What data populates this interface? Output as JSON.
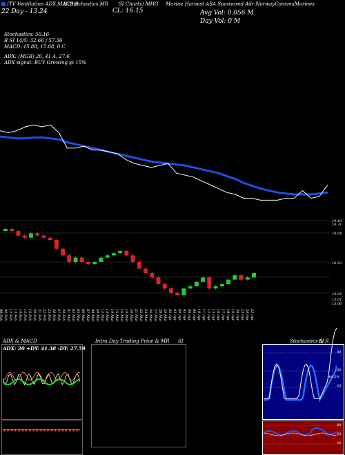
{
  "header": {
    "col1": "(TV Ventilation ADX,MACD,B",
    "col2": "SI,Stochastics,MR",
    "col3": "SI Charts) MHG",
    "col4": "Marine Harvest ASA Sponsored Adr NorwayConsmaMarines",
    "day_line": "22 Day - 13.24",
    "cl_label": "CL: 16.15",
    "avg_vol": "Avg Vol: 0.056  M",
    "day_vol": "Day Vol: 0  M"
  },
  "indicators": {
    "stochastics": "Stochastics: 56.16",
    "rsi": "R        SI 14/5: 32.66  / 57.36",
    "macd": "MACD: 15.88,  15.88,  0  C",
    "adx": "ADX:                      (MGR) 20,  41.4,   27.6",
    "adx_signal": "ADX  signal:                                   BUY Growing @ 15%"
  },
  "price_levels": {
    "l1": "19.42",
    "l2": "19.31",
    "l3": "19.04",
    "l4": "16.53",
    "l5": "15.02",
    "l6": "15.01",
    "l7": "13.06"
  },
  "x_labels": [
    "08 Feb",
    "09 Feb",
    "12 Feb",
    "13 Feb",
    "14 Feb",
    "15 Feb",
    "16 Feb",
    "20 Feb",
    "21 Feb",
    "22 Feb",
    "23 Feb",
    "26 Feb",
    "27 Feb",
    "28 Feb",
    "01 Mar",
    "02 Mar",
    "05 Mar",
    "06 Mar",
    "07 Mar",
    "08 Mar",
    "09 Mar",
    "12 Mar",
    "13 Mar",
    "14 Mar",
    "15 Mar",
    "16 Mar",
    "19 Mar",
    "20 Mar",
    "21 Mar",
    "22 Mar",
    "23 Mar",
    "26 Mar",
    "27 Mar",
    "28 Mar",
    "29 Mar",
    "02 Apr",
    "03 Apr",
    "04 Apr",
    "05 Apr",
    "06 Apr",
    "09 Apr",
    "10 Apr",
    "11 Apr",
    "12 Apr",
    "13 Apr",
    "16 Apr",
    "17 Apr",
    "18 Apr",
    "19 Apr",
    "20 Apr",
    "23 Apr",
    "24 Apr",
    "25 Apr"
  ],
  "panels": {
    "adx_title": "ADX  & MACD",
    "adx_values": "ADX: 20  +DY: 41.38  -DY: 27.59",
    "intraday_title": "Intra  Day Trading Price  & MR",
    "intraday_si": "SI",
    "stoch_title": "Stochastics & R",
    "stoch_si": "SI",
    "stoch_ticks": [
      "80",
      "50",
      "20"
    ],
    "stoch_value": "44.5%",
    "rsi_ticks": [
      "80",
      "50",
      "20"
    ]
  },
  "colors": {
    "ma_line": "#1f4fe6",
    "price_line": "#ffffff",
    "up_candle": "#22cc22",
    "down_candle": "#dd2222",
    "stoch_bg": "#000080",
    "rsi_bg": "#8b0000"
  },
  "chart_data": [
    {
      "type": "line",
      "name_ref": "price",
      "series": [
        {
          "values": [
            16.3,
            16.2,
            16.3,
            16.5,
            16.6,
            16.5,
            16.6,
            16.2,
            15.4,
            15.4,
            15.5,
            15.3,
            15.3,
            15.2,
            15.1,
            14.8,
            14.6,
            14.5,
            14.4,
            14.5,
            14.6,
            14.1,
            14.0,
            13.9,
            13.7,
            13.5,
            13.3,
            13.1,
            13.0,
            12.8,
            12.8,
            12.7,
            12.7,
            12.7,
            12.8,
            12.8,
            13.2,
            12.8,
            12.9,
            13.5
          ]
        },
        {
          "values": [
            16.0,
            15.95,
            15.9,
            15.9,
            15.95,
            15.95,
            15.9,
            15.85,
            15.7,
            15.6,
            15.5,
            15.4,
            15.3,
            15.2,
            15.1,
            15.0,
            14.9,
            14.8,
            14.7,
            14.65,
            14.6,
            14.55,
            14.5,
            14.4,
            14.3,
            14.2,
            14.1,
            13.95,
            13.8,
            13.6,
            13.45,
            13.3,
            13.2,
            13.1,
            13.05,
            13.0,
            13.0,
            13.0,
            13.05,
            13.1
          ]
        }
      ]
    },
    {
      "type": "bar",
      "name_ref": "candles",
      "values": [
        19.1,
        19.0,
        18.8,
        18.7,
        18.9,
        18.8,
        18.7,
        18.6,
        18.2,
        17.9,
        17.6,
        17.8,
        17.6,
        17.5,
        17.6,
        17.8,
        17.9,
        18.0,
        18.1,
        17.9,
        17.6,
        17.3,
        17.1,
        16.9,
        16.6,
        16.4,
        16.2,
        16.1,
        16.4,
        16.5,
        16.7,
        16.9,
        16.4,
        16.5,
        16.6,
        16.8,
        17.0,
        16.8,
        16.9,
        17.1
      ]
    }
  ]
}
